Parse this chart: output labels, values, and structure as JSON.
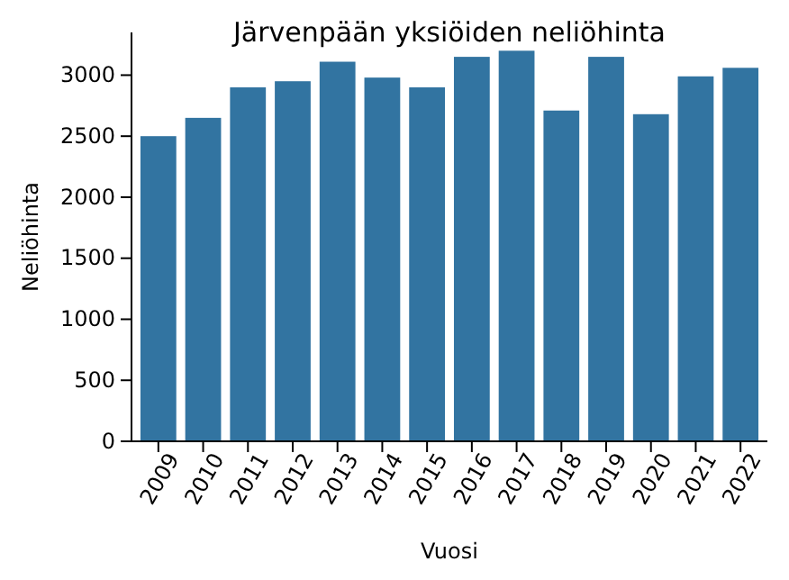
{
  "chart_data": {
    "type": "bar",
    "title": "Järvenpään yksiöiden neliöhinta",
    "xlabel": "Vuosi",
    "ylabel": "Neliöhinta",
    "categories": [
      "2009",
      "2010",
      "2011",
      "2012",
      "2013",
      "2014",
      "2015",
      "2016",
      "2017",
      "2018",
      "2019",
      "2020",
      "2021",
      "2022"
    ],
    "values": [
      2500,
      2650,
      2900,
      2950,
      3110,
      2980,
      2900,
      3150,
      3200,
      2710,
      3150,
      2680,
      2990,
      3060
    ],
    "color": "#3274a1",
    "ylim": [
      0,
      3350
    ],
    "yticks": [
      0,
      500,
      1000,
      1500,
      2000,
      2500,
      3000
    ]
  }
}
